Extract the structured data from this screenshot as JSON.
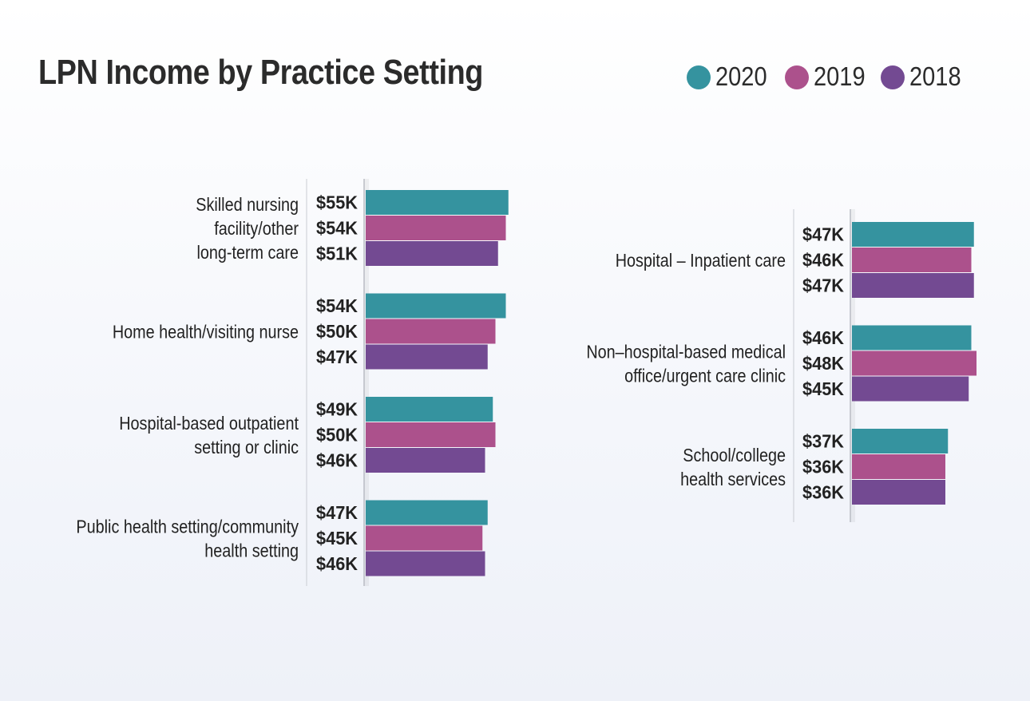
{
  "title": "LPN Income by Practice Setting",
  "legend": [
    {
      "label": "2020",
      "color": "#35939f"
    },
    {
      "label": "2019",
      "color": "#ac518c"
    },
    {
      "label": "2018",
      "color": "#734a92"
    }
  ],
  "chart_data": {
    "type": "bar",
    "orientation": "horizontal",
    "title": "LPN Income by Practice Setting",
    "unit": "$K",
    "series_names": [
      "2020",
      "2019",
      "2018"
    ],
    "panels": [
      {
        "position": "left",
        "categories": [
          {
            "label_lines": [
              "Skilled nursing",
              "facility/other",
              "long-term care"
            ],
            "values": [
              55,
              54,
              51
            ],
            "labels": [
              "$55K",
              "$54K",
              "$51K"
            ]
          },
          {
            "label_lines": [
              "Home health/visiting nurse"
            ],
            "values": [
              54,
              50,
              47
            ],
            "labels": [
              "$54K",
              "$50K",
              "$47K"
            ]
          },
          {
            "label_lines": [
              "Hospital-based outpatient",
              "setting or clinic"
            ],
            "values": [
              49,
              50,
              46
            ],
            "labels": [
              "$49K",
              "$50K",
              "$46K"
            ]
          },
          {
            "label_lines": [
              "Public health setting/community",
              "health setting"
            ],
            "values": [
              47,
              45,
              46
            ],
            "labels": [
              "$47K",
              "$45K",
              "$46K"
            ]
          }
        ]
      },
      {
        "position": "right",
        "categories": [
          {
            "label_lines": [
              "Hospital – Inpatient care"
            ],
            "values": [
              47,
              46,
              47
            ],
            "labels": [
              "$47K",
              "$46K",
              "$47K"
            ]
          },
          {
            "label_lines": [
              "Non–hospital-based medical",
              "office/urgent care clinic"
            ],
            "values": [
              46,
              48,
              45
            ],
            "labels": [
              "$46K",
              "$48K",
              "$45K"
            ]
          },
          {
            "label_lines": [
              "School/college",
              "health services"
            ],
            "values": [
              37,
              36,
              36
            ],
            "labels": [
              "$37K",
              "$36K",
              "$36K"
            ]
          }
        ]
      }
    ]
  }
}
